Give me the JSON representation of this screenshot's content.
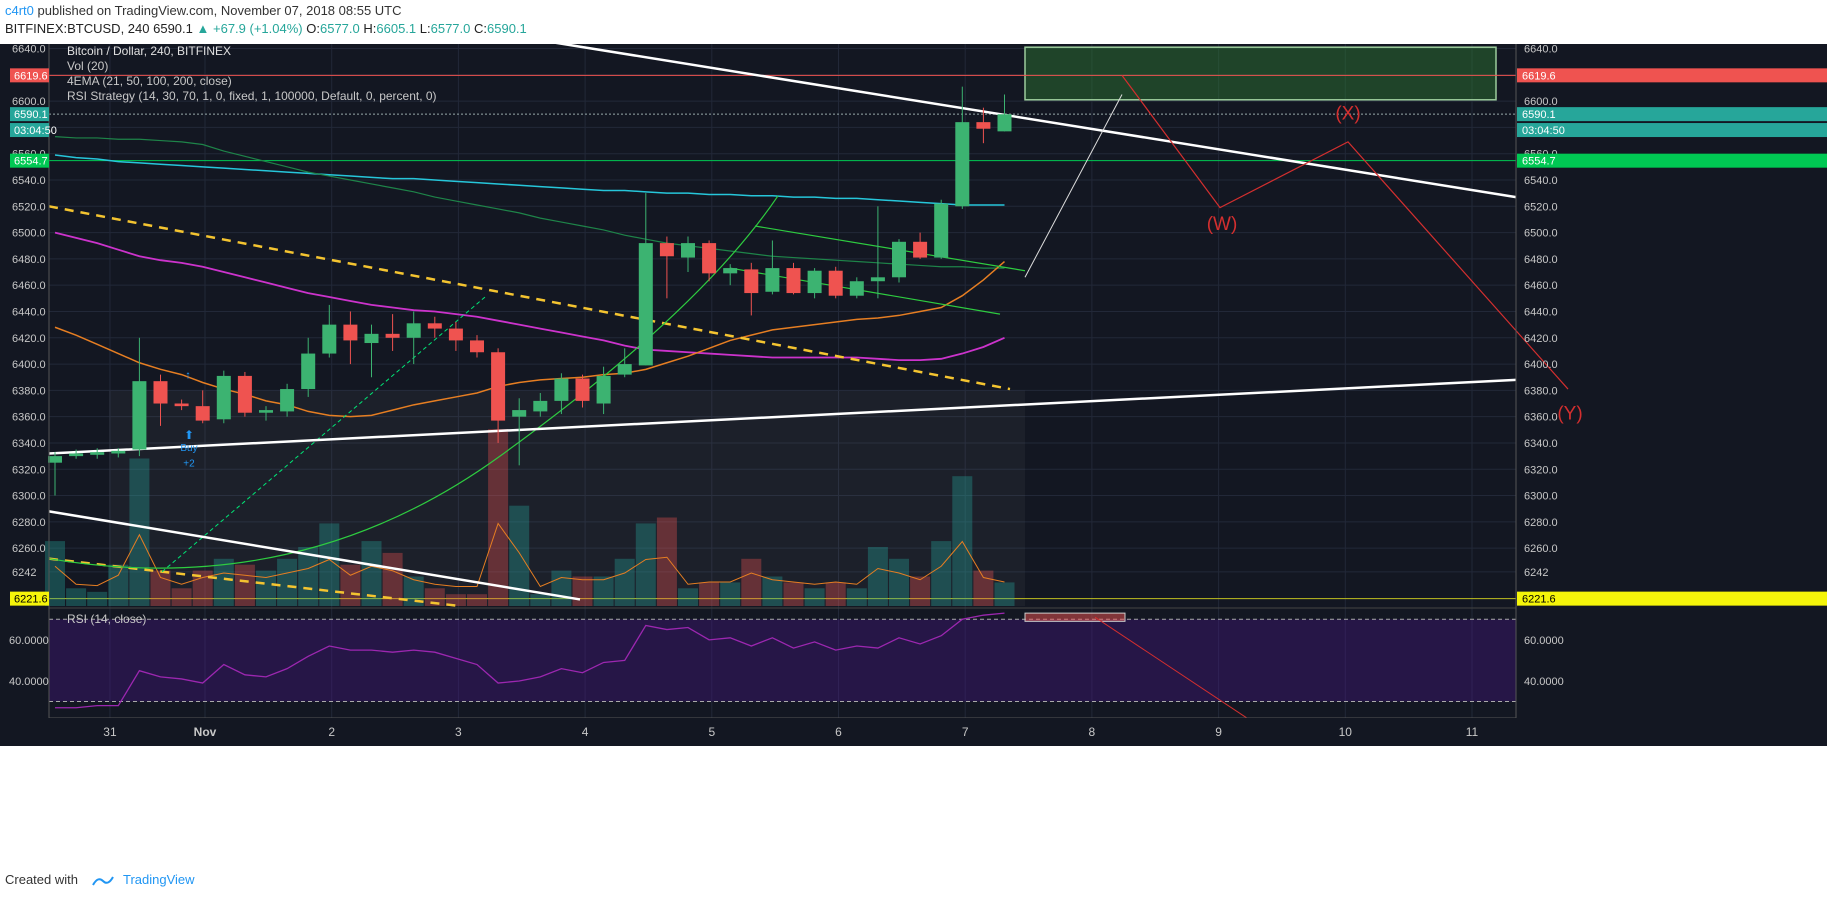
{
  "header": {
    "author": "c4rt0",
    "published_text": "published on TradingView.com, November 07, 2018 08:55 UTC",
    "symbol_line": "BITFINEX:BTCUSD, 240",
    "last": "6590.1",
    "change": "+67.9 (+1.04%)",
    "o_label": "O:",
    "o": "6577.0",
    "h_label": "H:",
    "h": "6605.1",
    "l_label": "L:",
    "l": "6577.0",
    "c_label": "C:",
    "c": "6590.1"
  },
  "footer": {
    "created_with": "Created with",
    "brand": "TradingView"
  },
  "colors": {
    "bg": "#131722",
    "up": "#26a69a",
    "up_candle": "#3cb371",
    "down": "#ef5350",
    "ema21": "#e67e22",
    "ema50": "#cc33cc",
    "ema100": "#1e8449",
    "ema200": "#26c6da",
    "trend": "#ffffff",
    "dashed": "#f4c430",
    "rsi_line": "#9c27b0",
    "projection": "#d32f2f"
  },
  "chart_data": [
    {
      "type": "candlestick",
      "title": "Bitcoin / Dollar, 240, BITFINEX",
      "legend": [
        "Vol (20)",
        "4EMA (21, 50, 100, 200, close)",
        "RSI Strategy (14, 30, 70, 1, 0, fixed, 1, 100000, Default, 0, percent, 0)"
      ],
      "ylim": [
        6216,
        6648
      ],
      "y_ticks": [
        6640,
        6620,
        6600,
        6580,
        6560,
        6540,
        6520,
        6500,
        6480,
        6460,
        6440,
        6420,
        6400,
        6380,
        6360,
        6340,
        6320,
        6300,
        6280,
        6260,
        6242
      ],
      "y_tick_labels": [
        "6640.0",
        "6620.0",
        "6600.0",
        "6580.0",
        "6560.0",
        "6540.0",
        "6520.0",
        "6500.0",
        "6480.0",
        "6460.0",
        "6440.0",
        "6420.0",
        "6400.0",
        "6380.0",
        "6360.0",
        "6340.0",
        "6320.0",
        "6300.0",
        "6280.0",
        "6260.0",
        "6242"
      ],
      "x_labels": [
        "31",
        "Nov",
        "2",
        "3",
        "4",
        "5",
        "6",
        "7",
        "8",
        "9",
        "10",
        "11"
      ],
      "x_label_days": [
        -0.75,
        0,
        1,
        2,
        3,
        4,
        5,
        6,
        7,
        8,
        9,
        10
      ],
      "price_tags": [
        {
          "label": "6619.6",
          "value": 6619.6,
          "color": "#ef5350"
        },
        {
          "label": "6590.1",
          "value": 6590.1,
          "color": "#26a69a"
        },
        {
          "label": "03:04:50",
          "value": 6578,
          "color": "#26a69a"
        },
        {
          "label": "6554.7",
          "value": 6554.7,
          "color": "#00c853"
        },
        {
          "label": "6221.6",
          "value": 6221.6,
          "color": "#f5f50a"
        }
      ],
      "candles": [
        {
          "o": 6325,
          "h": 6333,
          "l": 6300,
          "c": 6330
        },
        {
          "o": 6330,
          "h": 6335,
          "l": 6328,
          "c": 6332
        },
        {
          "o": 6331,
          "h": 6336,
          "l": 6328,
          "c": 6333
        },
        {
          "o": 6332,
          "h": 6336,
          "l": 6329,
          "c": 6334
        },
        {
          "o": 6335,
          "h": 6420,
          "l": 6330,
          "c": 6387
        },
        {
          "o": 6387,
          "h": 6392,
          "l": 6353,
          "c": 6370
        },
        {
          "o": 6370,
          "h": 6373,
          "l": 6365,
          "c": 6368
        },
        {
          "o": 6368,
          "h": 6380,
          "l": 6355,
          "c": 6357
        },
        {
          "o": 6358,
          "h": 6395,
          "l": 6355,
          "c": 6391
        },
        {
          "o": 6391,
          "h": 6394,
          "l": 6360,
          "c": 6363
        },
        {
          "o": 6363,
          "h": 6368,
          "l": 6357,
          "c": 6365
        },
        {
          "o": 6364,
          "h": 6385,
          "l": 6360,
          "c": 6381
        },
        {
          "o": 6381,
          "h": 6420,
          "l": 6375,
          "c": 6408
        },
        {
          "o": 6408,
          "h": 6445,
          "l": 6405,
          "c": 6430
        },
        {
          "o": 6430,
          "h": 6440,
          "l": 6400,
          "c": 6418
        },
        {
          "o": 6416,
          "h": 6430,
          "l": 6390,
          "c": 6423
        },
        {
          "o": 6423,
          "h": 6438,
          "l": 6410,
          "c": 6420
        },
        {
          "o": 6420,
          "h": 6440,
          "l": 6400,
          "c": 6431
        },
        {
          "o": 6431,
          "h": 6436,
          "l": 6420,
          "c": 6427
        },
        {
          "o": 6427,
          "h": 6432,
          "l": 6410,
          "c": 6418
        },
        {
          "o": 6418,
          "h": 6422,
          "l": 6405,
          "c": 6409
        },
        {
          "o": 6409,
          "h": 6412,
          "l": 6340,
          "c": 6357
        },
        {
          "o": 6360,
          "h": 6374,
          "l": 6323,
          "c": 6365
        },
        {
          "o": 6364,
          "h": 6378,
          "l": 6360,
          "c": 6372
        },
        {
          "o": 6372,
          "h": 6393,
          "l": 6362,
          "c": 6389
        },
        {
          "o": 6389,
          "h": 6392,
          "l": 6367,
          "c": 6372
        },
        {
          "o": 6370,
          "h": 6398,
          "l": 6362,
          "c": 6391
        },
        {
          "o": 6392,
          "h": 6412,
          "l": 6390,
          "c": 6400
        },
        {
          "o": 6399,
          "h": 6530,
          "l": 6399,
          "c": 6492
        },
        {
          "o": 6492,
          "h": 6497,
          "l": 6450,
          "c": 6482
        },
        {
          "o": 6481,
          "h": 6497,
          "l": 6470,
          "c": 6492
        },
        {
          "o": 6492,
          "h": 6494,
          "l": 6463,
          "c": 6469
        },
        {
          "o": 6469,
          "h": 6476,
          "l": 6460,
          "c": 6473
        },
        {
          "o": 6472,
          "h": 6477,
          "l": 6437,
          "c": 6454
        },
        {
          "o": 6455,
          "h": 6494,
          "l": 6453,
          "c": 6473
        },
        {
          "o": 6473,
          "h": 6477,
          "l": 6453,
          "c": 6454
        },
        {
          "o": 6454,
          "h": 6473,
          "l": 6450,
          "c": 6471
        },
        {
          "o": 6471,
          "h": 6474,
          "l": 6450,
          "c": 6452
        },
        {
          "o": 6452,
          "h": 6466,
          "l": 6450,
          "c": 6463
        },
        {
          "o": 6463,
          "h": 6520,
          "l": 6450,
          "c": 6466
        },
        {
          "o": 6466,
          "h": 6495,
          "l": 6462,
          "c": 6493
        },
        {
          "o": 6493,
          "h": 6500,
          "l": 6480,
          "c": 6481
        },
        {
          "o": 6481,
          "h": 6525,
          "l": 6480,
          "c": 6522
        },
        {
          "o": 6520,
          "h": 6611,
          "l": 6518,
          "c": 6584
        },
        {
          "o": 6584,
          "h": 6595,
          "l": 6568,
          "c": 6579
        },
        {
          "o": 6577,
          "h": 6605,
          "l": 6577,
          "c": 6590
        }
      ],
      "volume": [
        55,
        15,
        12,
        35,
        125,
        30,
        15,
        30,
        40,
        35,
        30,
        40,
        50,
        70,
        35,
        55,
        45,
        25,
        15,
        10,
        10,
        150,
        85,
        10,
        30,
        25,
        25,
        40,
        70,
        75,
        15,
        20,
        20,
        40,
        25,
        20,
        15,
        20,
        15,
        50,
        40,
        25,
        55,
        110,
        30,
        20
      ],
      "ema21": [
        6428,
        6422,
        6415,
        6408,
        6401,
        6396,
        6392,
        6386,
        6381,
        6377,
        6372,
        6369,
        6364,
        6361,
        6360,
        6361,
        6365,
        6369,
        6372,
        6375,
        6378,
        6383,
        6386,
        6388,
        6389,
        6390,
        6392,
        6393,
        6396,
        6401,
        6406,
        6412,
        6418,
        6422,
        6426,
        6428,
        6430,
        6432,
        6434,
        6435,
        6437,
        6440,
        6443,
        6452,
        6464,
        6478
      ],
      "ema50": [
        6500,
        6496,
        6492,
        6487,
        6482,
        6479,
        6477,
        6474,
        6470,
        6466,
        6462,
        6458,
        6454,
        6451,
        6448,
        6445,
        6443,
        6441,
        6440,
        6438,
        6436,
        6433,
        6430,
        6427,
        6424,
        6421,
        6418,
        6414,
        6411,
        6410,
        6409,
        6408,
        6407,
        6406,
        6405,
        6405,
        6405,
        6405,
        6405,
        6404,
        6403,
        6403,
        6404,
        6408,
        6413,
        6420
      ],
      "ema100": [
        6573,
        6572,
        6572,
        6571,
        6571,
        6570,
        6569,
        6567,
        6562,
        6558,
        6554,
        6550,
        6546,
        6543,
        6540,
        6537,
        6534,
        6531,
        6527,
        6524,
        6521,
        6518,
        6515,
        6511,
        6508,
        6505,
        6502,
        6498,
        6495,
        6492,
        6490,
        6488,
        6486,
        6484,
        6482,
        6481,
        6480,
        6479,
        6478,
        6477,
        6476,
        6475,
        6474,
        6474,
        6473,
        6473
      ],
      "ema200": [
        6559,
        6557,
        6556,
        6554,
        6553,
        6552,
        6551,
        6550,
        6549,
        6548,
        6547,
        6546,
        6545,
        6544,
        6543,
        6542,
        6541,
        6541,
        6540,
        6539,
        6538,
        6537,
        6536,
        6535,
        6534,
        6533,
        6532,
        6532,
        6531,
        6530,
        6530,
        6529,
        6529,
        6528,
        6528,
        6527,
        6527,
        6526,
        6526,
        6525,
        6524,
        6523,
        6522,
        6521,
        6521,
        6521
      ],
      "annotations": {
        "projection_labels": [
          "(W)",
          "(X)",
          "(Y)"
        ],
        "buy_label": "Buy",
        "buy_pct": "+2",
        "resistance_zone": [
          6601,
          6641
        ]
      }
    },
    {
      "type": "line",
      "title": "RSI (14, close)",
      "ylim": [
        22,
        75
      ],
      "y_ticks": [
        60,
        40
      ],
      "y_tick_labels": [
        "60.0000",
        "40.0000"
      ],
      "bands": [
        70,
        30
      ],
      "values": [
        27,
        27,
        28,
        28,
        45,
        42,
        41,
        39,
        48,
        43,
        42,
        46,
        52,
        57,
        55,
        55,
        54,
        55,
        54,
        51,
        48,
        39,
        40,
        42,
        46,
        44,
        49,
        50,
        67,
        65,
        66,
        60,
        61,
        57,
        61,
        56,
        59,
        55,
        57,
        56,
        61,
        58,
        62,
        70,
        72,
        73
      ]
    }
  ]
}
